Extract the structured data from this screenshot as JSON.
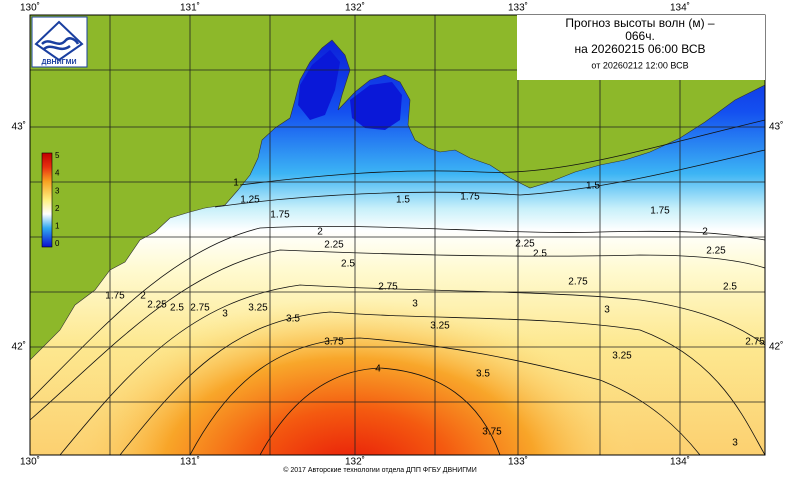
{
  "title": {
    "line1": "Прогноз высоты волн (м) –",
    "line2": "066ч.",
    "line3": "на 20260215 06:00 ВСВ",
    "line4": "от 20260212 12:00 ВСВ"
  },
  "logo": "ДВНИГМИ",
  "lon_labels": [
    "130˚",
    "131˚",
    "132˚",
    "133˚",
    "134˚"
  ],
  "lat_labels": [
    "43˚",
    "42˚"
  ],
  "colorbar_ticks": [
    5,
    4,
    3,
    2,
    1,
    0
  ],
  "contour_labels": [
    1,
    1.25,
    1.5,
    1.75,
    1.75,
    1.5,
    1.75,
    2,
    2.25,
    2.5,
    2.25,
    2.5,
    2,
    2.25,
    2.75,
    2.75,
    2.5,
    3,
    3,
    3.25,
    3,
    3.5,
    3.25,
    3.75,
    2.75,
    3.25,
    4,
    3.5,
    3.75,
    3,
    1.75,
    2,
    2.25,
    2.5,
    2.75
  ],
  "footer": "© 2017 Авторские технологии отдела ДПП ФГБУ ДВНИГМИ"
}
